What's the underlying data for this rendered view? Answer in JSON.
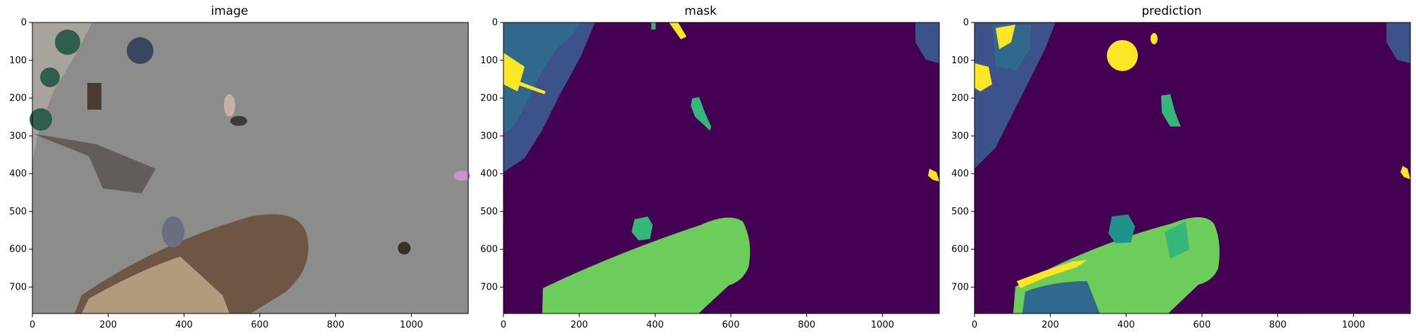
{
  "figure": {
    "panels": [
      {
        "id": "image",
        "title": "image"
      },
      {
        "id": "mask",
        "title": "mask"
      },
      {
        "id": "prediction",
        "title": "prediction"
      }
    ]
  },
  "chart_data": {
    "type": "image-grid",
    "image_extent": {
      "width": 1150,
      "height": 770
    },
    "x_ticks": [
      "0",
      "200",
      "400",
      "600",
      "800",
      "1000"
    ],
    "y_ticks": [
      "0",
      "100",
      "200",
      "300",
      "400",
      "500",
      "600",
      "700"
    ],
    "x_tick_values": [
      0,
      200,
      400,
      600,
      800,
      1000
    ],
    "y_tick_values": [
      0,
      100,
      200,
      300,
      400,
      500,
      600,
      700
    ],
    "colors": {
      "background": "#440154",
      "class_dark_blue": "#3b528b",
      "class_blue": "#31688e",
      "class_teal": "#21918c",
      "class_green": "#35b779",
      "class_light_green": "#6ccd5a",
      "class_yellow": "#fde725",
      "pavement": "#8c8c8a"
    }
  }
}
